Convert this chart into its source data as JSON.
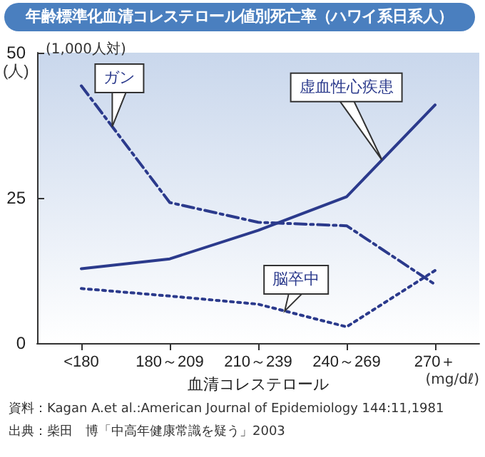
{
  "chart_data": {
    "type": "line",
    "title": "年齢標準化血清コレステロール値別死亡率（ハワイ系日系人）",
    "xlabel": "血清コレステロール",
    "ylabel": "(人)",
    "categories": [
      "<180",
      "180～209",
      "210～239",
      "240～269",
      "270＋"
    ],
    "series": [
      {
        "name": "虚血性心疾患",
        "color": "#2b3a8c",
        "line_style": "solid",
        "values": [
          12.8,
          14.5,
          19.4,
          25.2,
          41
        ]
      },
      {
        "name": "ガン",
        "color": "#2b3a8c",
        "line_style": "dashdot",
        "values": [
          44.3,
          24.2,
          20.8,
          20.2,
          10.1
        ]
      },
      {
        "name": "脳卒中",
        "color": "#2b3a8c",
        "line_style": "dotted",
        "values": [
          9.4,
          8.1,
          6.7,
          2.8,
          12.5
        ]
      }
    ],
    "ylim": [
      0,
      50
    ],
    "yticks": [
      0,
      25,
      50
    ],
    "grid": false,
    "legend": false,
    "marker": "none",
    "annotations": [
      "(1,000人対)",
      "(mg/dℓ)",
      "資料：Kagan A.et al.:American Journal of Epidemiology 144:11,1981",
      "出典：柴田　博「中高年健康常識を疑う」2003"
    ]
  }
}
